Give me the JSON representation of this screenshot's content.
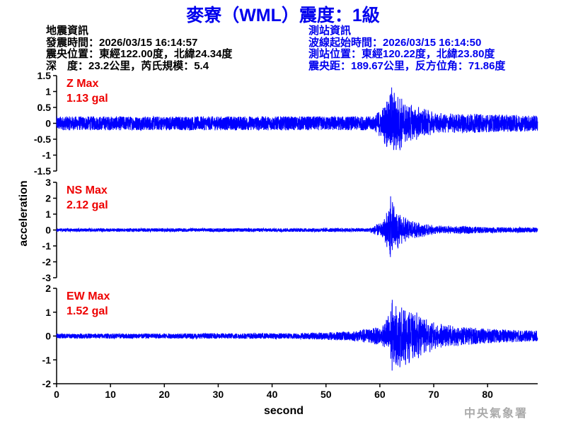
{
  "title": "麥寮（WML）震度：1級",
  "quake_info": {
    "heading": "地震資訊",
    "time": "發震時間：2026/03/15 16:14:57",
    "epicenter": "震央位置：東經122.00度，北緯24.34度",
    "depth_mag": "深　度：23.2公里，芮氏規模：5.4"
  },
  "station_info": {
    "heading": "測站資訊",
    "start_time": "波線起始時間：2026/03/15 16:14:50",
    "location": "測站位置：東經120.22度，北緯23.80度",
    "distance": "震央距：189.67公里，反方位角：71.86度"
  },
  "watermark": "中央氣象署",
  "colors": {
    "trace": "#0000ff",
    "title": "#0000ee",
    "label": "#ee0000"
  },
  "chart_data": {
    "type": "line",
    "xlabel": "second",
    "ylabel": "acceleration",
    "xlim": [
      0,
      89.3
    ],
    "xticks": [
      "0",
      "10",
      "20",
      "30",
      "40",
      "50",
      "60",
      "70",
      "80"
    ],
    "grid": false,
    "panels": [
      {
        "component": "Z",
        "label": "Z Max",
        "max_label": "1.13 gal",
        "max": 1.13,
        "peak_time": 62.2,
        "ylim": [
          -1.5,
          1.5
        ],
        "yticks": [
          "1.5",
          "1",
          "0.5",
          "0",
          "-0.5",
          "-1",
          "-1.5"
        ],
        "ytick_values": [
          1.5,
          1,
          0.5,
          0,
          -0.5,
          -1,
          -1.5
        ],
        "envelope": [
          [
            0,
            0.22
          ],
          [
            59,
            0.22
          ],
          [
            60.5,
            0.55
          ],
          [
            62,
            1.13
          ],
          [
            65,
            0.7
          ],
          [
            68,
            0.5
          ],
          [
            70,
            0.35
          ],
          [
            80,
            0.28
          ],
          [
            89.3,
            0.25
          ]
        ]
      },
      {
        "component": "NS",
        "label": "NS Max",
        "max_label": "2.12 gal",
        "max": 2.12,
        "peak_time": 62.0,
        "ylim": [
          -3,
          3
        ],
        "yticks": [
          "3",
          "2",
          "1",
          "0",
          "-1",
          "-2",
          "-3"
        ],
        "ytick_values": [
          3,
          2,
          1,
          0,
          -1,
          -2,
          -3
        ],
        "envelope": [
          [
            0,
            0.1
          ],
          [
            58,
            0.12
          ],
          [
            60.5,
            0.5
          ],
          [
            62,
            2.12
          ],
          [
            64,
            0.9
          ],
          [
            67,
            0.5
          ],
          [
            70,
            0.3
          ],
          [
            80,
            0.18
          ],
          [
            89.3,
            0.15
          ]
        ]
      },
      {
        "component": "EW",
        "label": "EW Max",
        "max_label": "1.52 gal",
        "max": 1.52,
        "peak_time": 62.3,
        "ylim": [
          -2,
          2
        ],
        "yticks": [
          "2",
          "1",
          "0",
          "-1",
          "-2"
        ],
        "ytick_values": [
          2,
          1,
          0,
          -1,
          -2
        ],
        "envelope": [
          [
            0,
            0.1
          ],
          [
            45,
            0.12
          ],
          [
            55,
            0.2
          ],
          [
            60.5,
            0.4
          ],
          [
            62.3,
            1.52
          ],
          [
            66,
            1.1
          ],
          [
            70,
            0.6
          ],
          [
            75,
            0.4
          ],
          [
            80,
            0.3
          ],
          [
            89.3,
            0.22
          ]
        ]
      }
    ]
  }
}
